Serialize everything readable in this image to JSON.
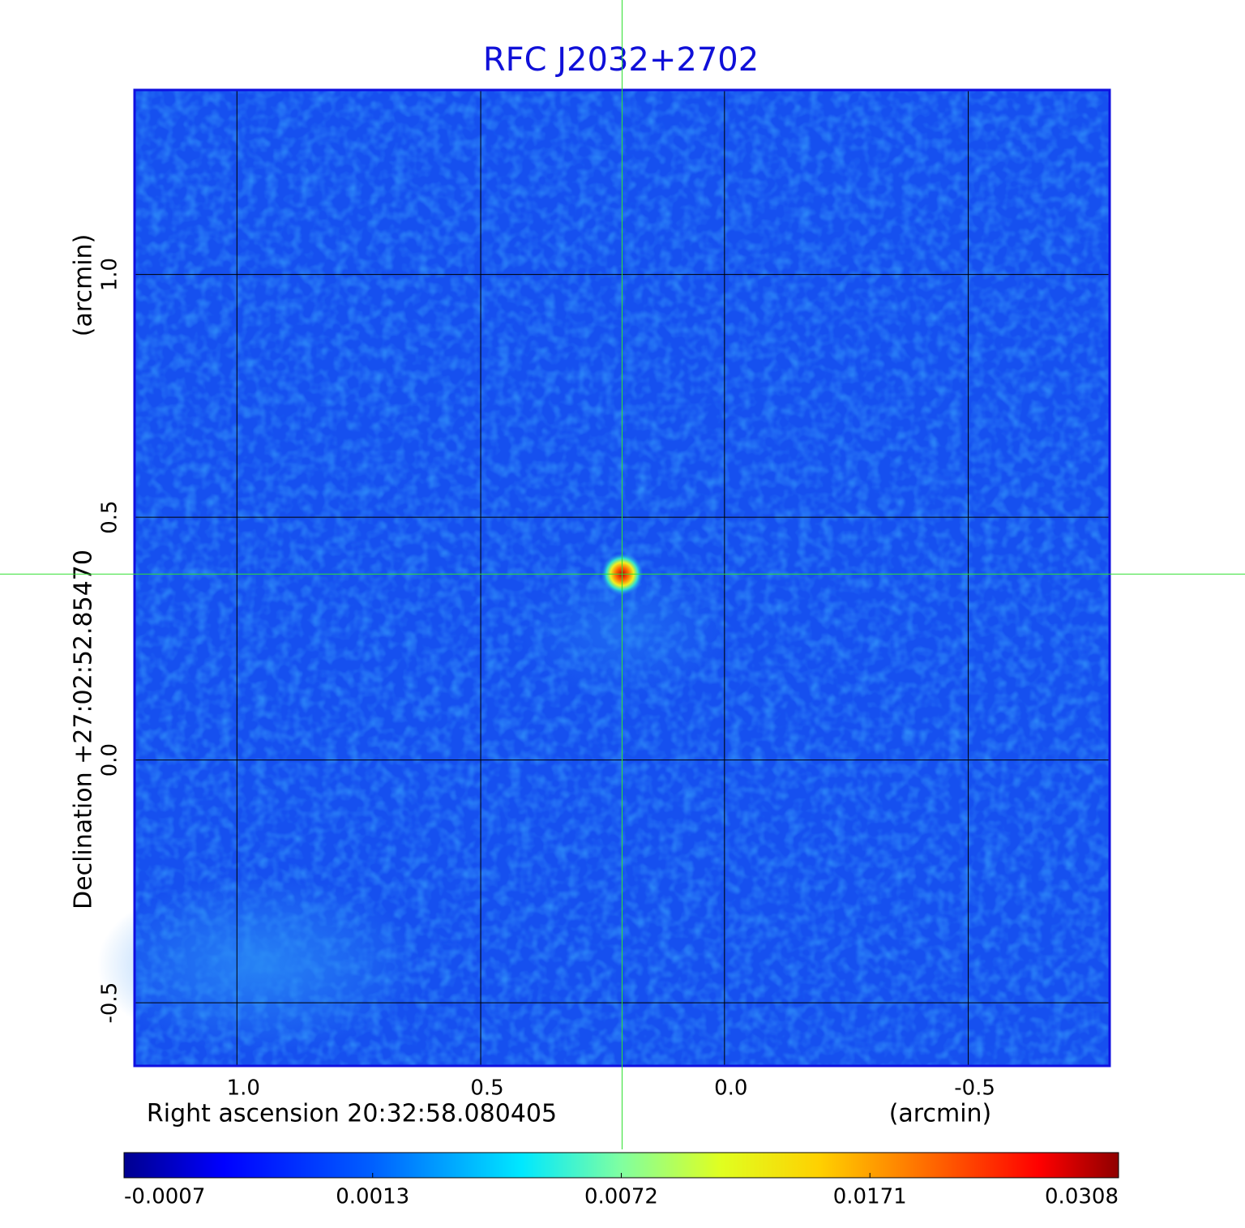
{
  "chart_data": {
    "type": "image",
    "title": "RFC J2032+2702",
    "xlabel": "Right ascension  20:32:58.080405",
    "xunit": "(arcmin)",
    "ylabel": "Declination  +27:02:52.85470",
    "yunit": "(arcmin)",
    "xlim": [
      1.21,
      -0.79
    ],
    "ylim": [
      -0.63,
      1.38
    ],
    "xticks": [
      {
        "value": 1,
        "label": "1.0"
      },
      0.5,
      {
        "value": 0,
        "label": "0.0"
      },
      -0.5
    ],
    "yticks": [
      {
        "value": 1,
        "label": "1.0"
      },
      0.5,
      {
        "value": 0,
        "label": "0.0"
      },
      -0.5
    ],
    "grid": true,
    "crosshair": {
      "x": 0.21,
      "y": 0.383
    },
    "colorbar": {
      "colormap": "jet",
      "ticks": [
        -0.0007,
        0.0013,
        0.0072,
        0.0171,
        0.0308
      ]
    }
  }
}
